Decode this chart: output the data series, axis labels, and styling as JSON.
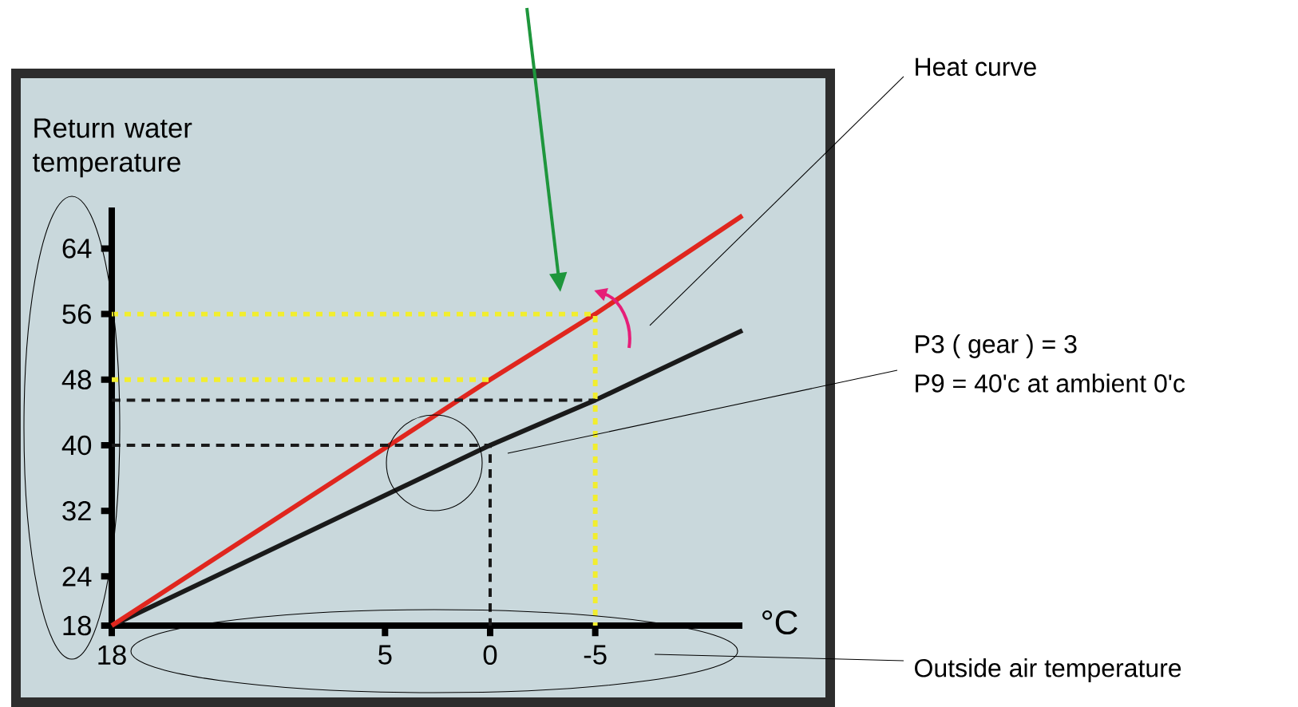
{
  "chart_data": {
    "type": "line",
    "ylabel": "Return water temperature",
    "annotations": [
      "Heat curve",
      "P3 ( gear ) = 3",
      "P9 = 40'c at ambient 0'c",
      "°C",
      "Outside air temperature"
    ],
    "xlim": [
      18,
      -12
    ],
    "xticks": [
      18,
      5,
      0,
      -5
    ],
    "ylim": [
      18,
      69
    ],
    "yticks": [
      18,
      24,
      32,
      40,
      48,
      56,
      64
    ],
    "series": [
      {
        "color": "#1a1a1a",
        "line_style": "solid",
        "x": [
          18,
          0,
          -5,
          -12
        ],
        "values": [
          18,
          40,
          45.5,
          54
        ]
      },
      {
        "color": "#e0261e",
        "line_style": "solid",
        "x": [
          18,
          0,
          -5,
          -12
        ],
        "values": [
          18,
          48,
          56,
          68
        ]
      },
      {
        "color": "#f2ee2e",
        "line_style": "dotted",
        "x": [
          18,
          -5,
          -5
        ],
        "values": [
          56,
          56,
          18
        ]
      },
      {
        "color": "#f2ee2e",
        "line_style": "dotted",
        "x": [
          18,
          0
        ],
        "values": [
          48,
          48
        ]
      },
      {
        "color": "#1a1a1a",
        "line_style": "dashed",
        "x": [
          18,
          0,
          0
        ],
        "values": [
          40,
          40,
          18
        ]
      },
      {
        "color": "#1a1a1a",
        "line_style": "dashed",
        "x": [
          18,
          -5
        ],
        "values": [
          45.5,
          45.5
        ]
      }
    ]
  }
}
